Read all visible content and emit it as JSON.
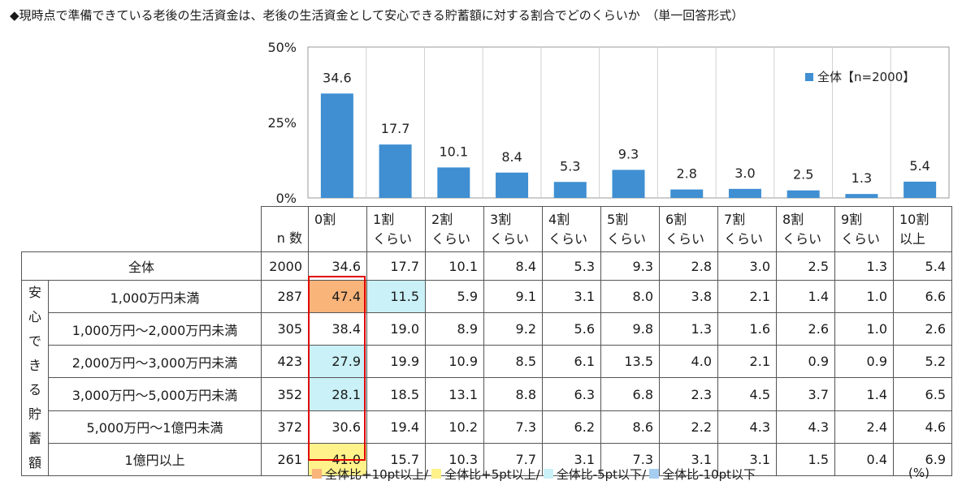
{
  "title": "◆現時点で準備できている老後の生活資金は、老後の生活資金として安心できる貯蓄額に対する割合でどのくらいか　（単一回答形式）",
  "chart_data": {
    "type": "bar",
    "categories": [
      "0割",
      "1割くらい",
      "2割くらい",
      "3割くらい",
      "4割くらい",
      "5割くらい",
      "6割くらい",
      "7割くらい",
      "8割くらい",
      "9割くらい",
      "10割以上"
    ],
    "series": [
      {
        "name": "全体【n=2000】",
        "values": [
          34.6,
          17.7,
          10.1,
          8.4,
          5.3,
          9.3,
          2.8,
          3.0,
          2.5,
          1.3,
          5.4
        ]
      }
    ],
    "ylim": [
      0,
      50
    ],
    "yticks": [
      "0%",
      "25%",
      "50%"
    ],
    "legend_position": "top-right",
    "grid": "vertical",
    "bar_color": "#3f8fd2"
  },
  "table": {
    "category_lines": [
      [
        "0割",
        ""
      ],
      [
        "1割",
        "くらい"
      ],
      [
        "2割",
        "くらい"
      ],
      [
        "3割",
        "くらい"
      ],
      [
        "4割",
        "くらい"
      ],
      [
        "5割",
        "くらい"
      ],
      [
        "6割",
        "くらい"
      ],
      [
        "7割",
        "くらい"
      ],
      [
        "8割",
        "くらい"
      ],
      [
        "9割",
        "くらい"
      ],
      [
        "10割",
        "以上"
      ]
    ],
    "n_header": "n 数",
    "total": {
      "label": "全体",
      "n": "2000",
      "values": [
        "34.6",
        "17.7",
        "10.1",
        "8.4",
        "5.3",
        "9.3",
        "2.8",
        "3.0",
        "2.5",
        "1.3",
        "5.4"
      ]
    },
    "group_label": [
      "安",
      "心",
      "で",
      "き",
      "る",
      "貯",
      "蓄",
      "額"
    ],
    "rows": [
      {
        "label": "1,000万円未満",
        "n": "287",
        "values": [
          "47.4",
          "11.5",
          "5.9",
          "9.1",
          "3.1",
          "8.0",
          "3.8",
          "2.1",
          "1.4",
          "1.0",
          "6.6"
        ],
        "hl": [
          "orange",
          "cyan",
          "",
          "",
          "",
          "",
          "",
          "",
          "",
          "",
          ""
        ]
      },
      {
        "label": "1,000万円～2,000万円未満",
        "n": "305",
        "values": [
          "38.4",
          "19.0",
          "8.9",
          "9.2",
          "5.6",
          "9.8",
          "1.3",
          "1.6",
          "2.6",
          "1.0",
          "2.6"
        ],
        "hl": [
          "",
          "",
          "",
          "",
          "",
          "",
          "",
          "",
          "",
          "",
          ""
        ]
      },
      {
        "label": "2,000万円～3,000万円未満",
        "n": "423",
        "values": [
          "27.9",
          "19.9",
          "10.9",
          "8.5",
          "6.1",
          "13.5",
          "4.0",
          "2.1",
          "0.9",
          "0.9",
          "5.2"
        ],
        "hl": [
          "cyan",
          "",
          "",
          "",
          "",
          "",
          "",
          "",
          "",
          "",
          ""
        ]
      },
      {
        "label": "3,000万円～5,000万円未満",
        "n": "352",
        "values": [
          "28.1",
          "18.5",
          "13.1",
          "8.8",
          "6.3",
          "6.8",
          "2.3",
          "4.5",
          "3.7",
          "1.4",
          "6.5"
        ],
        "hl": [
          "cyan",
          "",
          "",
          "",
          "",
          "",
          "",
          "",
          "",
          "",
          ""
        ]
      },
      {
        "label": "5,000万円～1億円未満",
        "n": "372",
        "values": [
          "30.6",
          "19.4",
          "10.2",
          "7.3",
          "6.2",
          "8.6",
          "2.2",
          "4.3",
          "4.3",
          "2.4",
          "4.6"
        ],
        "hl": [
          "",
          "",
          "",
          "",
          "",
          "",
          "",
          "",
          "",
          "",
          ""
        ]
      },
      {
        "label": "1億円以上",
        "n": "261",
        "values": [
          "41.0",
          "15.7",
          "10.3",
          "7.7",
          "3.1",
          "7.3",
          "3.1",
          "3.1",
          "1.5",
          "0.4",
          "6.9"
        ],
        "hl": [
          "yellow",
          "",
          "",
          "",
          "",
          "",
          "",
          "",
          "",
          "",
          ""
        ]
      }
    ]
  },
  "notes": {
    "items": [
      {
        "label": "全体比+10pt以上/",
        "color": "#f9b47a"
      },
      {
        "label": "全体比+5pt以上/",
        "color": "#fff28a"
      },
      {
        "label": "全体比-5pt以下/",
        "color": "#c9f1f7"
      },
      {
        "label": "全体比-10pt以下",
        "color": "#a5cdf0"
      }
    ],
    "unit": "(%)"
  }
}
